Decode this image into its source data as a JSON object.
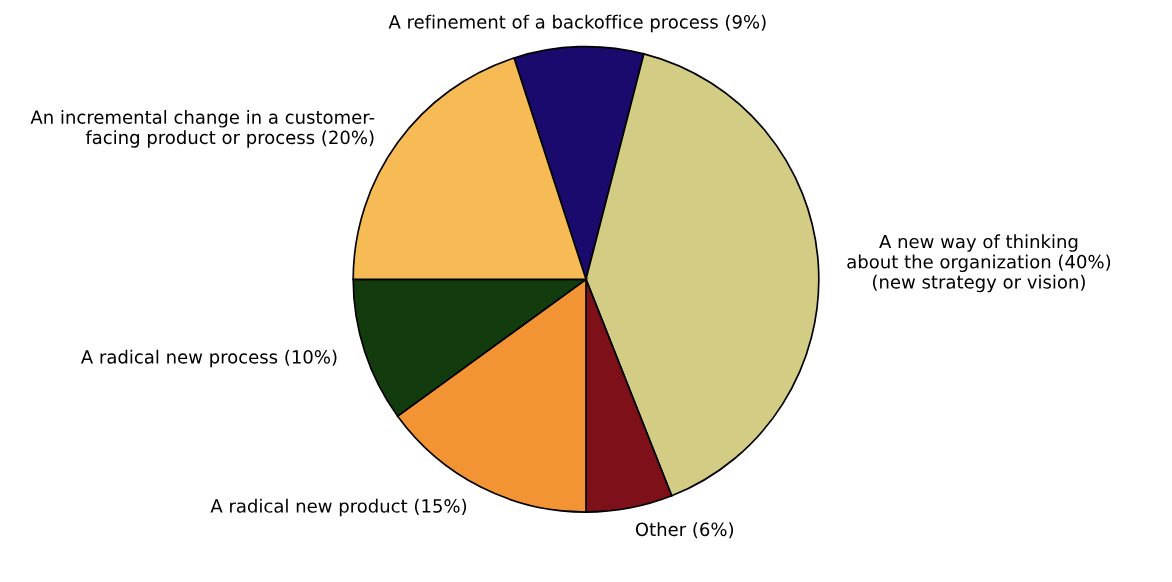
{
  "chart_data": {
    "type": "pie",
    "categories": [
      "A refinement of a backoffice process (9%)",
      "A new way of thinking\nabout the organization (40%)\n(new strategy or vision)",
      "Other (6%)",
      "A radical new product (15%)",
      "A radical new process (10%)",
      "An incremental change in a customer-\nfacing product or process (20%)"
    ],
    "values": [
      9,
      40,
      6,
      15,
      10,
      20
    ],
    "colors": [
      "#1a0a6e",
      "#d3cc85",
      "#7d1019",
      "#f29433",
      "#123b0e",
      "#f7bb55"
    ],
    "legend": false
  }
}
